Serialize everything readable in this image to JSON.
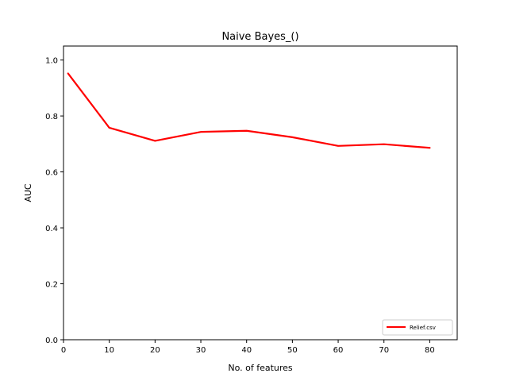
{
  "chart_data": {
    "type": "line",
    "title": "Naive Bayes_()",
    "xlabel": "No. of features",
    "ylabel": "AUC",
    "xlim": [
      0,
      86
    ],
    "ylim": [
      0,
      1.05
    ],
    "xticks": [
      "0",
      "10",
      "20",
      "30",
      "40",
      "50",
      "60",
      "70",
      "80"
    ],
    "yticks": [
      "0.0",
      "0.2",
      "0.4",
      "0.6",
      "0.8",
      "1.0"
    ],
    "grid": false,
    "legend_position": "bottom-right",
    "series": [
      {
        "name": "Relief.csv",
        "color": "#ff0000",
        "x": [
          1,
          10,
          20,
          30,
          40,
          50,
          60,
          70,
          80
        ],
        "y": [
          0.952,
          0.758,
          0.711,
          0.743,
          0.747,
          0.724,
          0.693,
          0.699,
          0.686
        ]
      }
    ]
  }
}
